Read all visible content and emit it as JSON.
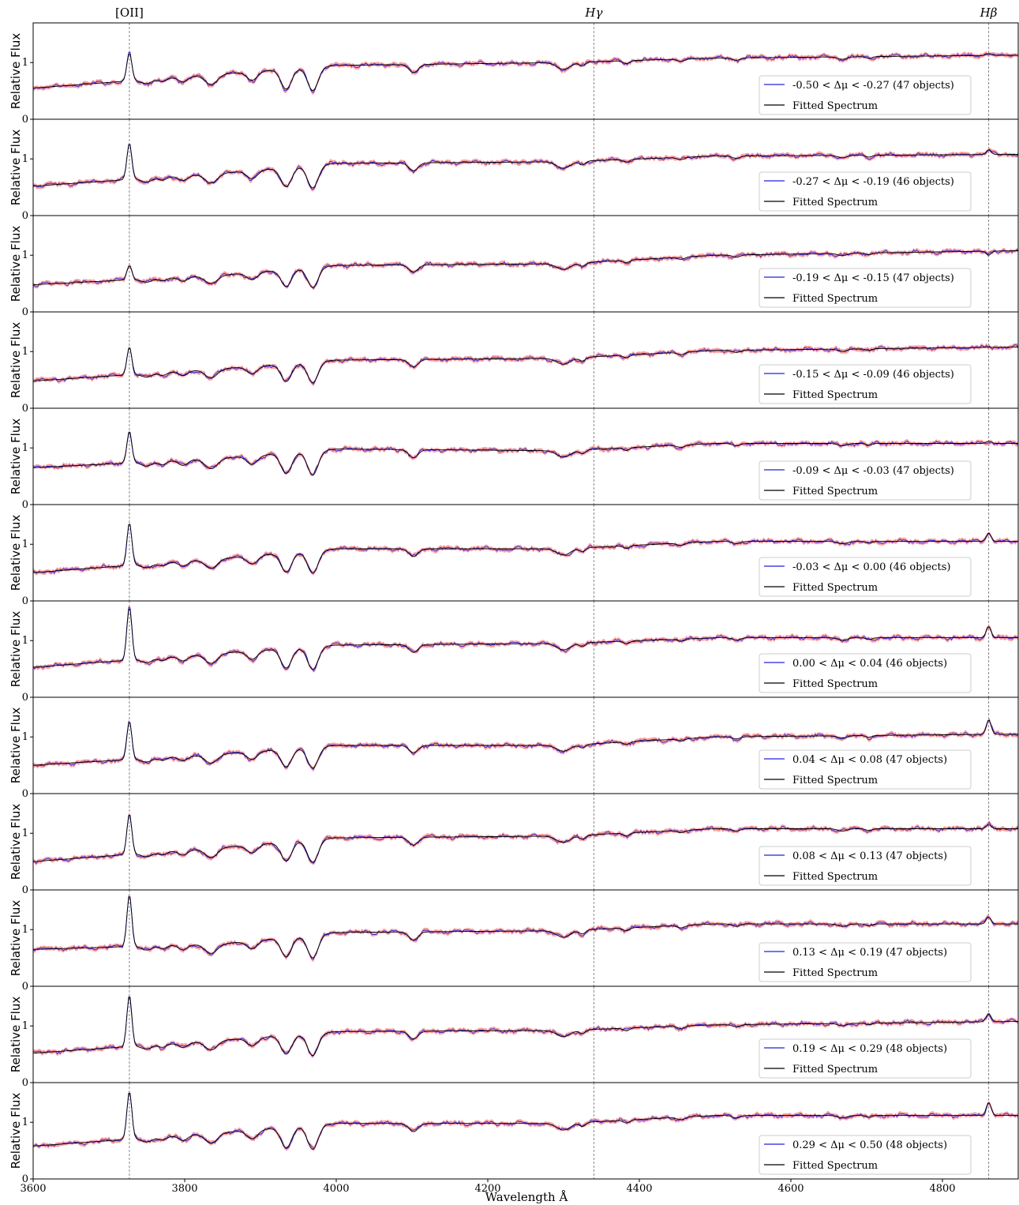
{
  "chart_data": {
    "type": "line",
    "xlabel": "Wavelength Å",
    "ylabel": "Relative Flux",
    "xlim": [
      3600,
      4900
    ],
    "ylim": [
      0,
      1.7
    ],
    "xticks": [
      3600,
      3800,
      4000,
      4200,
      4400,
      4600,
      4800
    ],
    "yticks": [
      0,
      1
    ],
    "legend_position": "lower-right",
    "colors": {
      "observed": "#2222dd",
      "error_band": "#ff7f7f",
      "fit": "#000000",
      "line_marker": "#888888"
    },
    "emission_lines": [
      {
        "label": "[OII]",
        "wavelength": 3727
      },
      {
        "label": "Hγ",
        "wavelength": 4340
      },
      {
        "label": "Hβ",
        "wavelength": 4861
      }
    ],
    "fit_label": "Fitted Spectrum",
    "panels": [
      {
        "label": "-0.50 < Δμ < -0.27   (47 objects)",
        "continuum": [
          0.55,
          0.8,
          0.95,
          1.0,
          1.08,
          1.13
        ],
        "oii_peak": 1.17,
        "hb_peak": 1.16
      },
      {
        "label": "-0.27 < Δμ < -0.19   (46 objects)",
        "continuum": [
          0.52,
          0.75,
          0.92,
          0.95,
          1.05,
          1.08
        ],
        "oii_peak": 1.28,
        "hb_peak": 1.16
      },
      {
        "label": "-0.19 < Δμ < -0.15   (47 objects)",
        "continuum": [
          0.48,
          0.65,
          0.82,
          0.85,
          1.0,
          1.08
        ],
        "oii_peak": 0.82,
        "hb_peak": 1.0
      },
      {
        "label": "-0.15 < Δμ < -0.09   (46 objects)",
        "continuum": [
          0.48,
          0.7,
          0.85,
          0.88,
          1.02,
          1.08
        ],
        "oii_peak": 1.08,
        "hb_peak": 1.08
      },
      {
        "label": "-0.09 < Δμ < -0.03   (47 objects)",
        "continuum": [
          0.65,
          0.82,
          0.98,
          0.95,
          1.08,
          1.08
        ],
        "oii_peak": 1.3,
        "hb_peak": 1.12
      },
      {
        "label": "-0.03 < Δμ < 0.00   (46 objects)",
        "continuum": [
          0.5,
          0.75,
          0.92,
          0.92,
          1.05,
          1.05
        ],
        "oii_peak": 1.38,
        "hb_peak": 1.2
      },
      {
        "label": "0.00 < Δμ < 0.04   (46 objects)",
        "continuum": [
          0.53,
          0.78,
          0.92,
          0.95,
          1.05,
          1.05
        ],
        "oii_peak": 1.6,
        "hb_peak": 1.25
      },
      {
        "label": "0.04 < Δμ < 0.08  (47 objects)",
        "continuum": [
          0.5,
          0.7,
          0.85,
          0.85,
          1.0,
          1.05
        ],
        "oii_peak": 1.28,
        "hb_peak": 1.3
      },
      {
        "label": "0.08 < Δμ < 0.13   (47 objects)",
        "continuum": [
          0.5,
          0.75,
          0.92,
          0.95,
          1.08,
          1.08
        ],
        "oii_peak": 1.35,
        "hb_peak": 1.15
      },
      {
        "label": "0.13 < Δμ < 0.19   (47 objects)",
        "continuum": [
          0.65,
          0.75,
          0.95,
          0.98,
          1.1,
          1.1
        ],
        "oii_peak": 1.62,
        "hb_peak": 1.22
      },
      {
        "label": "0.19 < Δμ < 0.29   (48 objects)",
        "continuum": [
          0.52,
          0.75,
          0.9,
          0.92,
          1.02,
          1.08
        ],
        "oii_peak": 1.55,
        "hb_peak": 1.22
      },
      {
        "label": "0.29 < Δμ < 0.50   (48 objects)",
        "continuum": [
          0.58,
          0.82,
          0.98,
          0.98,
          1.12,
          1.12
        ],
        "oii_peak": 1.55,
        "hb_peak": 1.35
      }
    ]
  }
}
